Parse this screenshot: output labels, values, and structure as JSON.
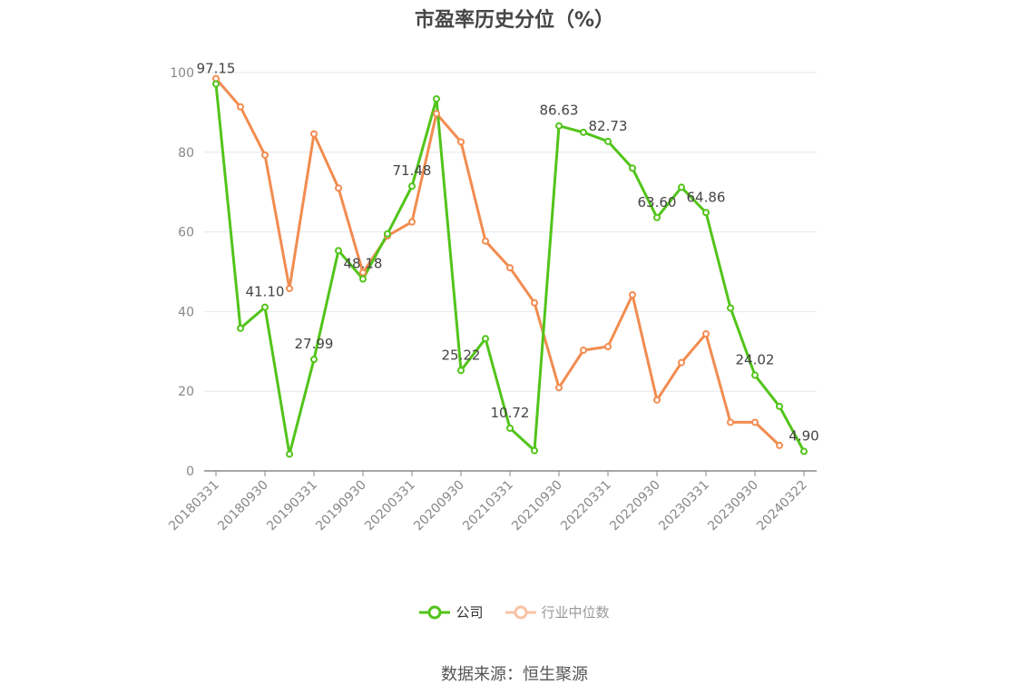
{
  "chart_data": {
    "type": "line",
    "title": "市盈率历史分位（%）",
    "ylim": [
      0,
      100
    ],
    "y_ticks": [
      0,
      20,
      40,
      60,
      80,
      100
    ],
    "x": [
      "20180331",
      "20180630",
      "20180930",
      "20181231",
      "20190331",
      "20190630",
      "20190930",
      "20191231",
      "20200331",
      "20200630",
      "20200930",
      "20201231",
      "20210331",
      "20210630",
      "20210930",
      "20211231",
      "20220331",
      "20220630",
      "20220930",
      "20221231",
      "20230331",
      "20230630",
      "20230930",
      "20231231",
      "20240322"
    ],
    "x_tick_labels": [
      "20180331",
      "20180930",
      "20190331",
      "20190930",
      "20200331",
      "20200930",
      "20210331",
      "20210930",
      "20220331",
      "20220930",
      "20230331",
      "20230930",
      "20240322"
    ],
    "series": [
      {
        "name": "公司",
        "color": "#52c41a",
        "values": [
          97.15,
          35.8,
          41.1,
          4.2,
          27.99,
          55.3,
          48.18,
          59.5,
          71.48,
          93.4,
          25.22,
          33.2,
          10.72,
          5.1,
          86.63,
          85.0,
          82.73,
          76.0,
          63.6,
          71.2,
          64.86,
          40.9,
          24.02,
          16.2,
          4.9
        ],
        "labels": {
          "0": "97.15",
          "2": "41.10",
          "4": "27.99",
          "6": "48.18",
          "8": "71.48",
          "10": "25.22",
          "12": "10.72",
          "14": "86.63",
          "16": "82.73",
          "18": "63.60",
          "20": "64.86",
          "22": "24.02",
          "24": "4.90"
        }
      },
      {
        "name": "行业中位数",
        "color": "#f28c50",
        "values": [
          98.5,
          91.4,
          79.3,
          45.8,
          84.6,
          71.0,
          49.8,
          59.0,
          62.5,
          89.7,
          82.6,
          57.7,
          51.0,
          42.2,
          20.9,
          30.3,
          31.2,
          44.2,
          17.8,
          27.2,
          34.4,
          12.2,
          12.2,
          6.4,
          null
        ]
      }
    ],
    "legend_position": "bottom-center",
    "grid": true
  },
  "source_text": "数据来源：恒生聚源"
}
